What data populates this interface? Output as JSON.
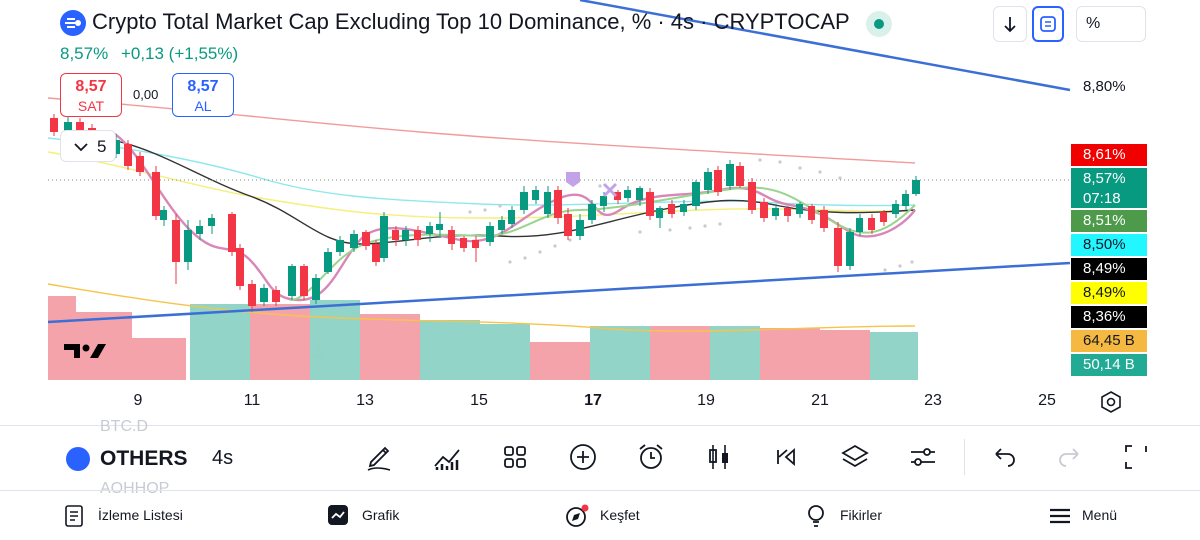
{
  "header": {
    "title": "Crypto Total Market Cap Excluding Top 10 Dominance, % · 4s · CRYPTOCAP",
    "last_price": "8,57%",
    "change": "+0,13 (+1,55%)",
    "scale_mode": "%"
  },
  "trade": {
    "sell_value": "8,57",
    "sell_label": "SAT",
    "spread": "0,00",
    "buy_value": "8,57",
    "buy_label": "AL"
  },
  "indicators_count": "5",
  "trendline_label": "8,80%",
  "price_tags": [
    {
      "text": "8,61%",
      "bg": "#f00000",
      "fg": "#ffffff"
    },
    {
      "text": "8,57%",
      "sub": "07:18",
      "bg": "#089981",
      "fg": "#ffffff"
    },
    {
      "text": "8,51%",
      "bg": "#4c9a4a",
      "fg": "#ffffff"
    },
    {
      "text": "8,50%",
      "bg": "#22f6ff",
      "fg": "#131722"
    },
    {
      "text": "8,49%",
      "bg": "#000000",
      "fg": "#ffffff"
    },
    {
      "text": "8,49%",
      "bg": "#ffff00",
      "fg": "#131722"
    },
    {
      "text": "8,36%",
      "bg": "#000000",
      "fg": "#ffffff"
    },
    {
      "text": "64,45 B",
      "bg": "#f5b942",
      "fg": "#131722"
    },
    {
      "text": "50,14 B",
      "bg": "#22ab94",
      "fg": "#ffffff"
    }
  ],
  "x_axis": [
    "9",
    "11",
    "13",
    "15",
    "17",
    "19",
    "21",
    "23",
    "25"
  ],
  "symbol_bar": {
    "symbol": "OTHERS",
    "interval": "4s",
    "ghost_above": "BTC.D",
    "ghost_below": "AOHHOP"
  },
  "tools": [
    "draw-icon",
    "indicators-icon",
    "templates-icon",
    "add-icon",
    "alert-icon",
    "chart-type-icon",
    "replay-icon",
    "layers-icon",
    "settings-sliders-icon",
    "undo-icon",
    "redo-icon",
    "fullscreen-icon"
  ],
  "nav": {
    "watchlist": "İzleme Listesi",
    "chart": "Grafik",
    "explore": "Keşfet",
    "ideas": "Fikirler",
    "menu": "Menü"
  },
  "colors": {
    "up": "#089981",
    "down": "#f23645",
    "accent": "#2962ff",
    "trendline": "#3b6fd6"
  }
}
